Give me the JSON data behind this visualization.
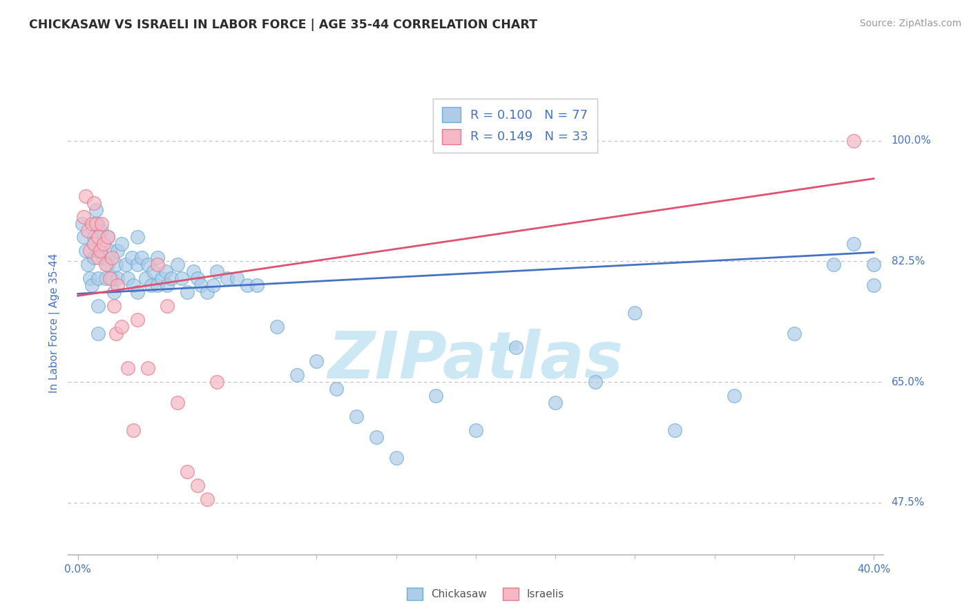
{
  "title": "CHICKASAW VS ISRAELI IN LABOR FORCE | AGE 35-44 CORRELATION CHART",
  "source_text": "Source: ZipAtlas.com",
  "ylabel": "In Labor Force | Age 35-44",
  "xlim": [
    -0.005,
    0.405
  ],
  "ylim": [
    0.4,
    1.07
  ],
  "ytick_labels": [
    "47.5%",
    "65.0%",
    "82.5%",
    "100.0%"
  ],
  "ytick_values": [
    0.475,
    0.65,
    0.825,
    1.0
  ],
  "blue_R": 0.1,
  "blue_N": 77,
  "pink_R": 0.149,
  "pink_N": 33,
  "blue_color": "#aecce8",
  "pink_color": "#f5b8c4",
  "blue_edge_color": "#6aaed6",
  "pink_edge_color": "#e8758a",
  "blue_line_color": "#4472c4",
  "pink_line_color": "#e05070",
  "legend_label_blue": "Chickasaw",
  "legend_label_pink": "Israelis",
  "watermark": "ZIPatlas",
  "watermark_color": "#cde8f5",
  "blue_line_y0": 0.778,
  "blue_line_y1": 0.838,
  "pink_line_y0": 0.775,
  "pink_line_y1": 0.945,
  "blue_scatter_x": [
    0.002,
    0.003,
    0.004,
    0.005,
    0.006,
    0.007,
    0.008,
    0.008,
    0.009,
    0.01,
    0.01,
    0.01,
    0.01,
    0.01,
    0.012,
    0.013,
    0.014,
    0.015,
    0.015,
    0.016,
    0.017,
    0.018,
    0.019,
    0.02,
    0.02,
    0.022,
    0.024,
    0.025,
    0.027,
    0.028,
    0.03,
    0.03,
    0.03,
    0.032,
    0.034,
    0.035,
    0.037,
    0.038,
    0.04,
    0.04,
    0.042,
    0.044,
    0.045,
    0.047,
    0.05,
    0.052,
    0.055,
    0.058,
    0.06,
    0.062,
    0.065,
    0.068,
    0.07,
    0.075,
    0.08,
    0.085,
    0.09,
    0.1,
    0.11,
    0.12,
    0.13,
    0.14,
    0.15,
    0.16,
    0.18,
    0.2,
    0.22,
    0.24,
    0.26,
    0.28,
    0.3,
    0.33,
    0.36,
    0.38,
    0.39,
    0.4,
    0.4
  ],
  "blue_scatter_y": [
    0.88,
    0.86,
    0.84,
    0.82,
    0.8,
    0.79,
    0.83,
    0.86,
    0.9,
    0.88,
    0.84,
    0.8,
    0.76,
    0.72,
    0.87,
    0.83,
    0.8,
    0.86,
    0.82,
    0.84,
    0.8,
    0.78,
    0.82,
    0.84,
    0.8,
    0.85,
    0.82,
    0.8,
    0.83,
    0.79,
    0.86,
    0.82,
    0.78,
    0.83,
    0.8,
    0.82,
    0.79,
    0.81,
    0.83,
    0.79,
    0.8,
    0.81,
    0.79,
    0.8,
    0.82,
    0.8,
    0.78,
    0.81,
    0.8,
    0.79,
    0.78,
    0.79,
    0.81,
    0.8,
    0.8,
    0.79,
    0.79,
    0.73,
    0.66,
    0.68,
    0.64,
    0.6,
    0.57,
    0.54,
    0.63,
    0.58,
    0.7,
    0.62,
    0.65,
    0.75,
    0.58,
    0.63,
    0.72,
    0.82,
    0.85,
    0.82,
    0.79
  ],
  "pink_scatter_x": [
    0.003,
    0.004,
    0.005,
    0.006,
    0.007,
    0.008,
    0.008,
    0.009,
    0.01,
    0.01,
    0.011,
    0.012,
    0.013,
    0.014,
    0.015,
    0.016,
    0.017,
    0.018,
    0.019,
    0.02,
    0.022,
    0.025,
    0.028,
    0.03,
    0.035,
    0.04,
    0.045,
    0.05,
    0.055,
    0.06,
    0.065,
    0.07,
    0.39
  ],
  "pink_scatter_y": [
    0.89,
    0.92,
    0.87,
    0.84,
    0.88,
    0.91,
    0.85,
    0.88,
    0.86,
    0.83,
    0.84,
    0.88,
    0.85,
    0.82,
    0.86,
    0.8,
    0.83,
    0.76,
    0.72,
    0.79,
    0.73,
    0.67,
    0.58,
    0.74,
    0.67,
    0.82,
    0.76,
    0.62,
    0.52,
    0.5,
    0.48,
    0.65,
    1.0
  ],
  "grid_color": "#bbbbbb",
  "background_color": "#ffffff"
}
